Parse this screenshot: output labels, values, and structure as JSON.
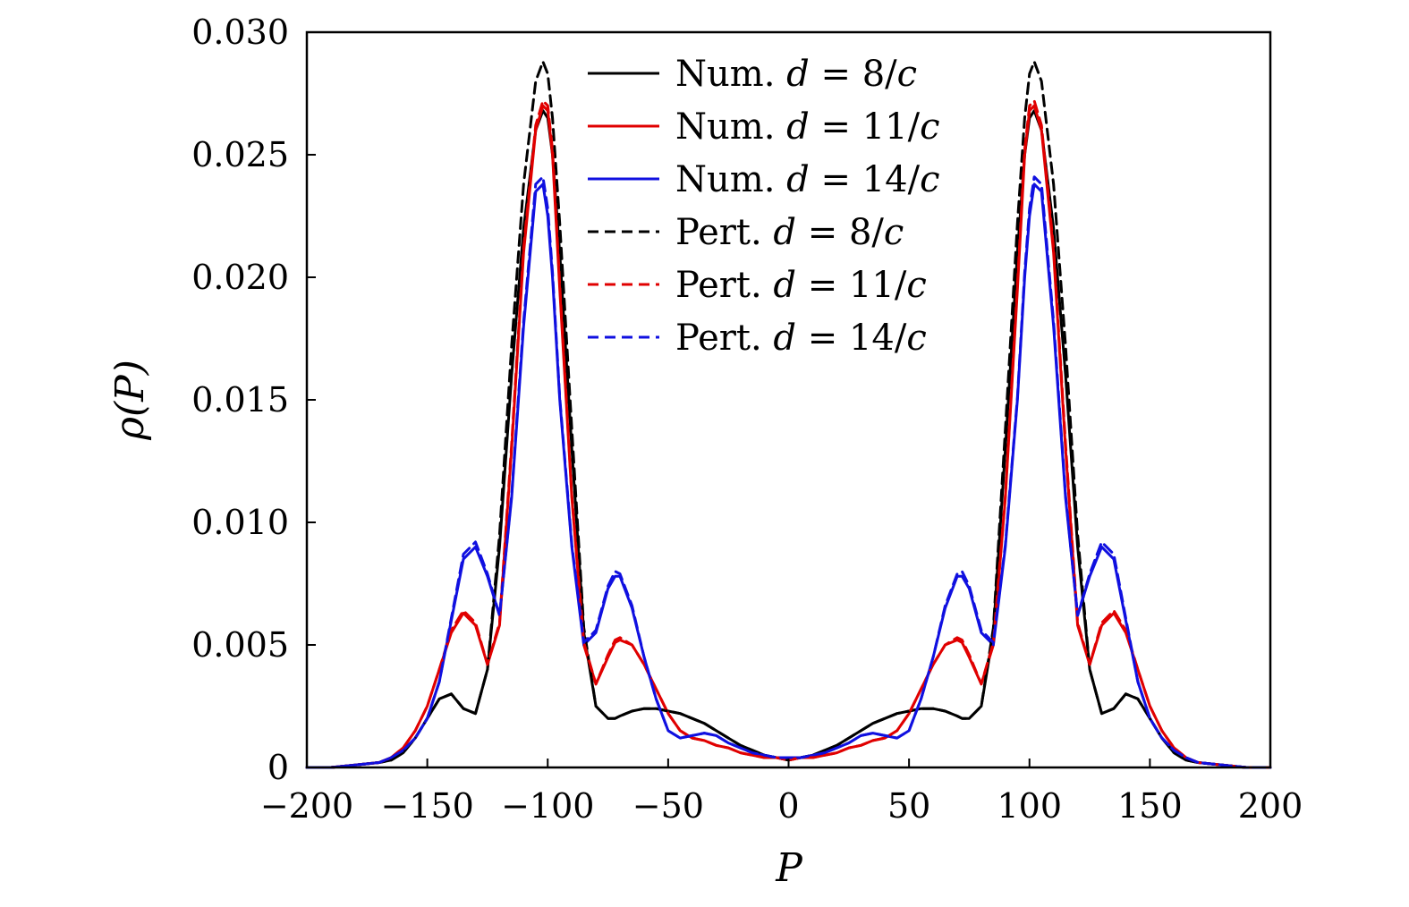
{
  "chart_data": {
    "type": "line",
    "title": "",
    "xlabel": "P",
    "ylabel": "ρ(P)",
    "xlim": [
      -200,
      200
    ],
    "ylim": [
      0,
      0.03
    ],
    "grid": false,
    "legend_position": "top-center",
    "xticks": [
      -200,
      -150,
      -100,
      -50,
      0,
      50,
      100,
      150,
      200
    ],
    "xtick_labels": [
      "−200",
      "−150",
      "−100",
      "−50",
      "0",
      "50",
      "100",
      "150",
      "200"
    ],
    "yticks": [
      0,
      0.005,
      0.01,
      0.015,
      0.02,
      0.025,
      0.03
    ],
    "ytick_labels": [
      "0",
      "0.005",
      "0.010",
      "0.015",
      "0.020",
      "0.025",
      "0.030"
    ],
    "x": [
      -200,
      -190,
      -180,
      -170,
      -165,
      -160,
      -155,
      -150,
      -145,
      -140,
      -135,
      -130,
      -125,
      -120,
      -115,
      -110,
      -105,
      -102,
      -100,
      -98,
      -95,
      -90,
      -85,
      -80,
      -75,
      -72,
      -70,
      -65,
      -60,
      -55,
      -50,
      -45,
      -40,
      -35,
      -30,
      -25,
      -20,
      -15,
      -10,
      -5,
      0,
      5,
      10,
      15,
      20,
      25,
      30,
      35,
      40,
      45,
      50,
      55,
      60,
      65,
      70,
      72,
      75,
      80,
      85,
      90,
      95,
      98,
      100,
      102,
      105,
      110,
      115,
      120,
      125,
      130,
      135,
      140,
      145,
      150,
      155,
      160,
      165,
      170,
      180,
      190,
      200
    ],
    "series": [
      {
        "name": "Num. d = 8/c",
        "color": "#000000",
        "dash": "solid",
        "values": [
          0,
          0,
          0.0001,
          0.0002,
          0.0003,
          0.0006,
          0.0012,
          0.002,
          0.0028,
          0.003,
          0.0024,
          0.0022,
          0.004,
          0.009,
          0.016,
          0.022,
          0.026,
          0.0268,
          0.0265,
          0.025,
          0.021,
          0.013,
          0.0055,
          0.0025,
          0.002,
          0.002,
          0.0021,
          0.0023,
          0.0024,
          0.0024,
          0.0023,
          0.0022,
          0.002,
          0.0018,
          0.0015,
          0.0012,
          0.0009,
          0.0007,
          0.0005,
          0.0004,
          0.0003,
          0.0004,
          0.0005,
          0.0007,
          0.0009,
          0.0012,
          0.0015,
          0.0018,
          0.002,
          0.0022,
          0.0023,
          0.0024,
          0.0024,
          0.0023,
          0.0021,
          0.002,
          0.002,
          0.0025,
          0.0055,
          0.013,
          0.021,
          0.025,
          0.0265,
          0.0268,
          0.026,
          0.022,
          0.016,
          0.009,
          0.004,
          0.0022,
          0.0024,
          0.003,
          0.0028,
          0.002,
          0.0012,
          0.0006,
          0.0003,
          0.0002,
          0.0001,
          0,
          0
        ]
      },
      {
        "name": "Num. d = 11/c",
        "color": "#e00000",
        "dash": "solid",
        "values": [
          0,
          0,
          0.0001,
          0.0002,
          0.0004,
          0.0008,
          0.0015,
          0.0025,
          0.004,
          0.0055,
          0.0063,
          0.0058,
          0.0042,
          0.0058,
          0.013,
          0.021,
          0.026,
          0.027,
          0.0268,
          0.025,
          0.0195,
          0.011,
          0.005,
          0.0034,
          0.0045,
          0.0051,
          0.0052,
          0.005,
          0.0042,
          0.0032,
          0.0022,
          0.0015,
          0.0012,
          0.0011,
          0.0009,
          0.0008,
          0.0006,
          0.0005,
          0.0004,
          0.0004,
          0.0003,
          0.0004,
          0.0004,
          0.0005,
          0.0006,
          0.0008,
          0.0009,
          0.0011,
          0.0012,
          0.0015,
          0.0022,
          0.0032,
          0.0042,
          0.005,
          0.0052,
          0.0051,
          0.0045,
          0.0034,
          0.005,
          0.011,
          0.0195,
          0.025,
          0.0268,
          0.027,
          0.026,
          0.021,
          0.013,
          0.0058,
          0.0042,
          0.0058,
          0.0063,
          0.0055,
          0.004,
          0.0025,
          0.0015,
          0.0008,
          0.0004,
          0.0002,
          0.0001,
          0,
          0
        ]
      },
      {
        "name": "Num. d = 14/c",
        "color": "#1010e0",
        "dash": "solid",
        "values": [
          0,
          0,
          0.0001,
          0.0002,
          0.0004,
          0.0007,
          0.0012,
          0.002,
          0.0035,
          0.006,
          0.0085,
          0.009,
          0.0078,
          0.0062,
          0.011,
          0.018,
          0.0235,
          0.0238,
          0.0225,
          0.02,
          0.015,
          0.009,
          0.005,
          0.0055,
          0.0073,
          0.0078,
          0.0078,
          0.0065,
          0.0045,
          0.0028,
          0.0015,
          0.0012,
          0.0013,
          0.0014,
          0.0013,
          0.001,
          0.0008,
          0.0006,
          0.0005,
          0.0004,
          0.0004,
          0.0004,
          0.0005,
          0.0006,
          0.0008,
          0.001,
          0.0013,
          0.0014,
          0.0013,
          0.0012,
          0.0015,
          0.0028,
          0.0045,
          0.0065,
          0.0078,
          0.0078,
          0.0073,
          0.0055,
          0.005,
          0.009,
          0.015,
          0.02,
          0.0225,
          0.0238,
          0.0235,
          0.018,
          0.011,
          0.0062,
          0.0078,
          0.009,
          0.0085,
          0.006,
          0.0035,
          0.002,
          0.0012,
          0.0007,
          0.0004,
          0.0002,
          0.0001,
          0,
          0
        ]
      },
      {
        "name": "Pert. d = 8/c",
        "color": "#000000",
        "dash": "dashed",
        "values": [
          0,
          0,
          0.0001,
          0.0002,
          0.0003,
          0.0006,
          0.0012,
          0.002,
          0.0028,
          0.003,
          0.0024,
          0.0022,
          0.004,
          0.0095,
          0.0172,
          0.0238,
          0.028,
          0.0288,
          0.0283,
          0.0265,
          0.0222,
          0.0138,
          0.0057,
          0.0025,
          0.002,
          0.002,
          0.0021,
          0.0023,
          0.0024,
          0.0024,
          0.0023,
          0.0022,
          0.002,
          0.0018,
          0.0015,
          0.0012,
          0.0009,
          0.0007,
          0.0005,
          0.0004,
          0.0003,
          0.0004,
          0.0005,
          0.0007,
          0.0009,
          0.0012,
          0.0015,
          0.0018,
          0.002,
          0.0022,
          0.0023,
          0.0024,
          0.0024,
          0.0023,
          0.0021,
          0.002,
          0.002,
          0.0025,
          0.0057,
          0.0138,
          0.0222,
          0.0265,
          0.0283,
          0.0288,
          0.028,
          0.0238,
          0.0172,
          0.0095,
          0.004,
          0.0022,
          0.0024,
          0.003,
          0.0028,
          0.002,
          0.0012,
          0.0006,
          0.0003,
          0.0002,
          0.0001,
          0,
          0
        ]
      },
      {
        "name": "Pert. d = 11/c",
        "color": "#e00000",
        "dash": "dashed",
        "values": [
          0,
          0,
          0.0001,
          0.0002,
          0.0004,
          0.0008,
          0.0015,
          0.0025,
          0.004,
          0.0056,
          0.0064,
          0.0059,
          0.0042,
          0.0059,
          0.0132,
          0.0212,
          0.0262,
          0.0272,
          0.027,
          0.0252,
          0.0197,
          0.0111,
          0.0051,
          0.0034,
          0.0046,
          0.0052,
          0.0053,
          0.005,
          0.0042,
          0.0032,
          0.0022,
          0.0015,
          0.0012,
          0.0011,
          0.0009,
          0.0008,
          0.0006,
          0.0005,
          0.0004,
          0.0004,
          0.0003,
          0.0004,
          0.0004,
          0.0005,
          0.0006,
          0.0008,
          0.0009,
          0.0011,
          0.0012,
          0.0015,
          0.0022,
          0.0032,
          0.0042,
          0.005,
          0.0053,
          0.0052,
          0.0046,
          0.0034,
          0.0051,
          0.0111,
          0.0197,
          0.0252,
          0.027,
          0.0272,
          0.0262,
          0.0212,
          0.0132,
          0.0059,
          0.0042,
          0.0059,
          0.0064,
          0.0056,
          0.004,
          0.0025,
          0.0015,
          0.0008,
          0.0004,
          0.0002,
          0.0001,
          0,
          0
        ]
      },
      {
        "name": "Pert. d = 14/c",
        "color": "#1010e0",
        "dash": "dashed",
        "values": [
          0,
          0,
          0.0001,
          0.0002,
          0.0004,
          0.0007,
          0.0012,
          0.002,
          0.0035,
          0.0061,
          0.0087,
          0.0092,
          0.0079,
          0.0062,
          0.0111,
          0.0182,
          0.0238,
          0.0241,
          0.0228,
          0.0202,
          0.0151,
          0.0091,
          0.0051,
          0.0056,
          0.0074,
          0.008,
          0.0079,
          0.0066,
          0.0045,
          0.0028,
          0.0015,
          0.0012,
          0.0013,
          0.0014,
          0.0013,
          0.001,
          0.0008,
          0.0006,
          0.0005,
          0.0004,
          0.0004,
          0.0004,
          0.0005,
          0.0006,
          0.0008,
          0.001,
          0.0013,
          0.0014,
          0.0013,
          0.0012,
          0.0015,
          0.0028,
          0.0045,
          0.0066,
          0.0079,
          0.008,
          0.0074,
          0.0056,
          0.0051,
          0.0091,
          0.0151,
          0.0202,
          0.0228,
          0.0241,
          0.0238,
          0.0182,
          0.0111,
          0.0062,
          0.0079,
          0.0092,
          0.0087,
          0.0061,
          0.0035,
          0.002,
          0.0012,
          0.0007,
          0.0004,
          0.0002,
          0.0001,
          0,
          0
        ]
      }
    ],
    "legend": [
      {
        "prefix": "Num.",
        "d": "d",
        "eq": "=",
        "value": "8/",
        "c": "c"
      },
      {
        "prefix": "Num.",
        "d": "d",
        "eq": "=",
        "value": "11/",
        "c": "c"
      },
      {
        "prefix": "Num.",
        "d": "d",
        "eq": "=",
        "value": "14/",
        "c": "c"
      },
      {
        "prefix": "Pert.",
        "d": "d",
        "eq": "=",
        "value": "8/",
        "c": "c"
      },
      {
        "prefix": "Pert.",
        "d": "d",
        "eq": "=",
        "value": "11/",
        "c": "c"
      },
      {
        "prefix": "Pert.",
        "d": "d",
        "eq": "=",
        "value": "14/",
        "c": "c"
      }
    ]
  }
}
